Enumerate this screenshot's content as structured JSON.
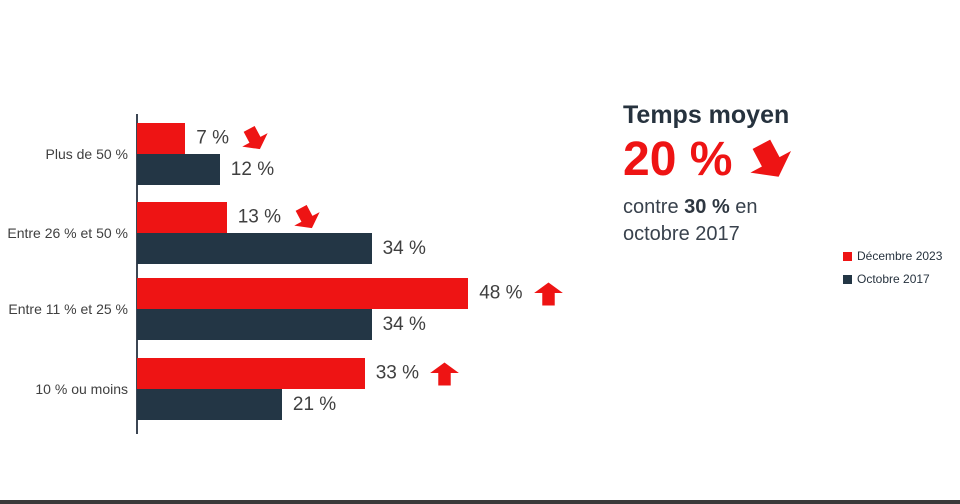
{
  "page": {
    "background": "#ffffff",
    "bottom_strip_color": "#3a3a3a"
  },
  "chart_data": {
    "type": "bar",
    "orientation": "horizontal",
    "title": "",
    "xlabel": "",
    "ylabel": "",
    "xlim": [
      0,
      50
    ],
    "grid": false,
    "legend_position": "right",
    "categories": [
      "Plus de 50 %",
      "Entre 26 % et 50 %",
      "Entre 11 % et 25 %",
      "10 % ou moins"
    ],
    "series": [
      {
        "name": "Décembre 2023",
        "color": "#ee1414",
        "values": [
          7,
          13,
          48,
          33
        ],
        "labels": [
          "7 %",
          "13 %",
          "48 %",
          "33 %"
        ],
        "trend_arrows": [
          "down",
          "down",
          "up",
          "up"
        ]
      },
      {
        "name": "Octobre 2017",
        "color": "#233645",
        "values": [
          12,
          34,
          34,
          21
        ],
        "labels": [
          "12 %",
          "34 %",
          "34 %",
          "21 %"
        ],
        "trend_arrows": [
          null,
          null,
          null,
          null
        ]
      }
    ],
    "value_label_color": "#3f3f3f",
    "arrow_color": "#ee1414"
  },
  "callout": {
    "title": "Temps moyen",
    "big_value": "20 %",
    "trend": "down",
    "line1_prefix": "contre ",
    "line1_bold": "30 %",
    "line1_suffix": " en",
    "line2": "octobre 2017"
  },
  "legend": {
    "items": [
      {
        "label": "Décembre 2023",
        "color": "#ee1414"
      },
      {
        "label": "Octobre 2017",
        "color": "#233645"
      }
    ]
  }
}
